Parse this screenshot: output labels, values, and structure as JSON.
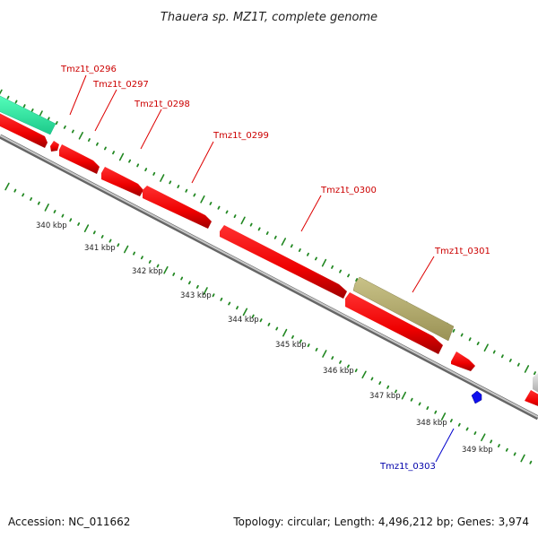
{
  "title": "Thauera sp. MZ1T, complete genome",
  "footer": {
    "accession": "Accession: NC_011662",
    "summary": "Topology: circular; Length: 4,496,212 bp; Genes: 3,974"
  },
  "colors": {
    "cds": "#ff0000",
    "cds_dark": "#b00000",
    "trna": "#0000ff",
    "rrna_teal": "#33ffaa",
    "olive": "#b8b070",
    "backbone": "#888888",
    "tick": "#228822",
    "gene_label_red": "#cc0000",
    "gene_label_blue": "#0000aa"
  },
  "scale": {
    "unit": "kbp",
    "labels": [
      "340 kbp",
      "341 kbp",
      "342 kbp",
      "343 kbp",
      "344 kbp",
      "345 kbp",
      "346 kbp",
      "347 kbp",
      "348 kbp",
      "349 kbp"
    ]
  },
  "gene_labels": [
    {
      "text": "Tmz1t_0296",
      "tone": "red"
    },
    {
      "text": "Tmz1t_0297",
      "tone": "red"
    },
    {
      "text": "Tmz1t_0298",
      "tone": "red"
    },
    {
      "text": "Tmz1t_0299",
      "tone": "red"
    },
    {
      "text": "Tmz1t_0300",
      "tone": "red"
    },
    {
      "text": "Tmz1t_0301",
      "tone": "red"
    },
    {
      "text": "Tmz1t_0303",
      "tone": "blue"
    }
  ]
}
